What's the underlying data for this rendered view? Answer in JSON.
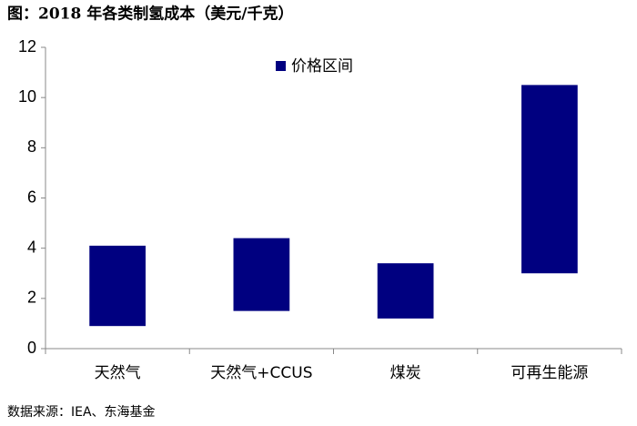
{
  "chart_data": {
    "type": "floating-bar",
    "title": "图：2018 年各类制氢成本（美元/千克）",
    "source": "数据来源：IEA、东海基金",
    "categories": [
      "天然气",
      "天然气+CCUS",
      "煤炭",
      "可再生能源"
    ],
    "series": [
      {
        "name": "价格区间",
        "color": "#000080",
        "low": [
          0.9,
          1.5,
          1.2,
          3.0
        ],
        "high": [
          4.1,
          4.4,
          3.4,
          10.5
        ]
      }
    ],
    "ylim": [
      0,
      12
    ],
    "yticks": [
      0,
      2,
      4,
      6,
      8,
      10,
      12
    ],
    "grid": false,
    "legend": "top-center"
  }
}
